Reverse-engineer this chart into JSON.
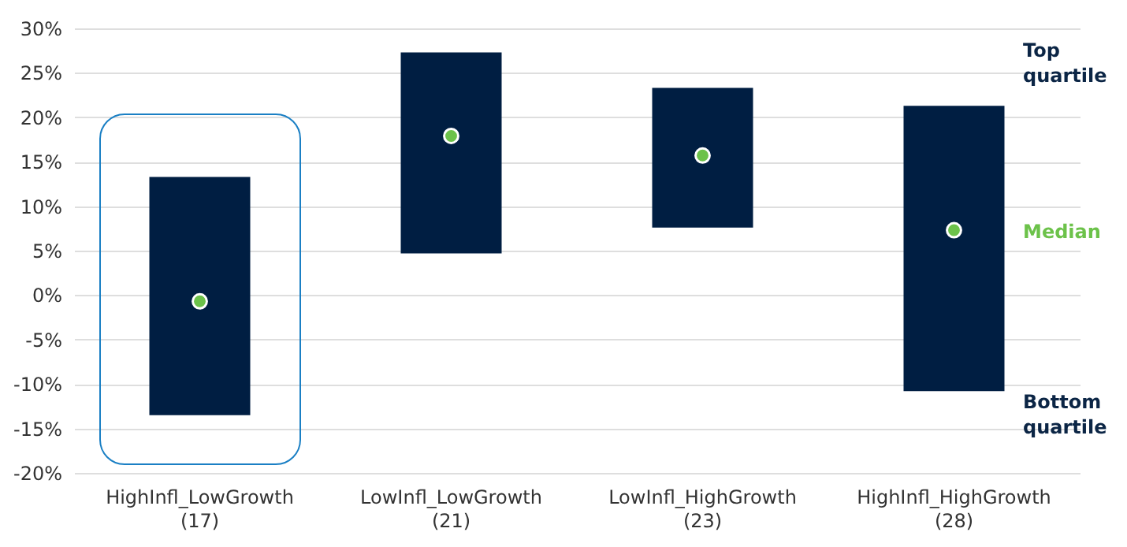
{
  "chart_data": {
    "type": "bar",
    "categories": [
      "HighInfl_LowGrowth\n(17)",
      "LowInfl_LowGrowth\n(21)",
      "LowInfl_HighGrowth\n(23)",
      "HighInfl_HighGrowth\n(28)"
    ],
    "series": [
      {
        "type": "bar",
        "color": "#001e42",
        "base": [
          -13.5,
          4.7,
          7.6,
          -10.8
        ],
        "values": [
          26.8,
          22.6,
          15.7,
          32.1
        ]
      },
      {
        "type": "scatter",
        "color": "#6cc24a",
        "x": [
          "HighInfl_LowGrowth\n(17)",
          "LowInfl_LowGrowth\n(21)",
          "LowInfl_HighGrowth\n(23)",
          "HighInfl_HighGrowth\n(28)"
        ],
        "values": [
          -0.7,
          17.9,
          15.7,
          7.3
        ]
      }
    ],
    "ylim": [
      -20,
      30
    ],
    "yticks": [
      {
        "value": -20,
        "label": "-20%"
      },
      {
        "value": -15,
        "label": "-15%"
      },
      {
        "value": -10,
        "label": "-10%"
      },
      {
        "value": -5,
        "label": "-5%"
      },
      {
        "value": 0,
        "label": "0%"
      },
      {
        "value": 5,
        "label": "5%"
      },
      {
        "value": 10,
        "label": "10%"
      },
      {
        "value": 15,
        "label": "15%"
      },
      {
        "value": 20,
        "label": "20%"
      },
      {
        "value": 25,
        "label": "25%"
      },
      {
        "value": 30,
        "label": "30%"
      }
    ],
    "grid": "y",
    "marker": "circle",
    "annotations": [
      "Top\nquartile",
      "Median",
      "Bottom\nquartile"
    ]
  }
}
